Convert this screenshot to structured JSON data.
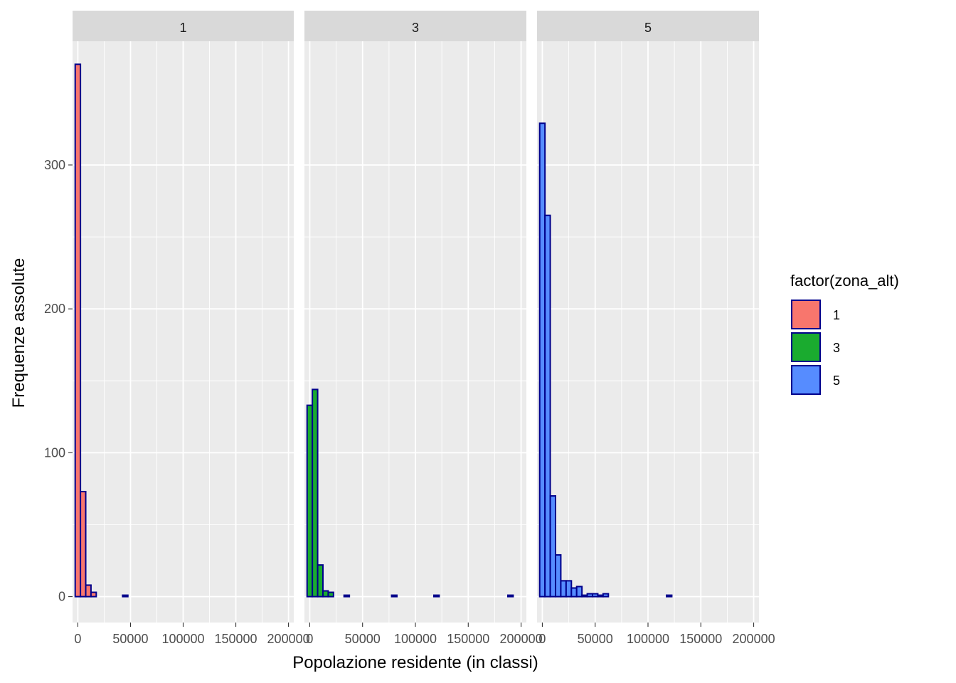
{
  "chart_data": {
    "type": "bar",
    "subtype": "faceted-histogram",
    "xlabel": "Popolazione residente (in classi)",
    "ylabel": "Frequenze assolute",
    "xlim": [
      -5000,
      205000
    ],
    "ylim": [
      -18,
      386
    ],
    "x_ticks": [
      0,
      50000,
      100000,
      150000,
      200000
    ],
    "x_tick_labels": [
      "0",
      "50000",
      "100000",
      "150000",
      "200000"
    ],
    "y_ticks": [
      0,
      100,
      200,
      300
    ],
    "y_tick_labels": [
      "0",
      "100",
      "200",
      "300"
    ],
    "grid": true,
    "bin_width": 5000,
    "bin_centers": [
      0,
      5000,
      10000,
      15000,
      20000,
      25000,
      30000,
      35000,
      40000,
      45000,
      50000,
      55000,
      60000,
      65000,
      70000,
      75000,
      80000,
      85000,
      90000,
      95000,
      100000,
      105000,
      110000,
      115000,
      120000,
      125000,
      130000,
      135000,
      140000,
      145000,
      150000,
      155000,
      160000,
      165000,
      170000,
      175000,
      180000,
      185000,
      190000,
      195000,
      200000
    ],
    "bar_outline_color": "#00008b",
    "legend": {
      "title": "factor(zona_alt)",
      "placement": "right",
      "entries": [
        "1",
        "3",
        "5"
      ]
    },
    "facets": [
      {
        "label": "1",
        "color": "#f8766d",
        "bin_start": 0,
        "counts": [
          370,
          73,
          8,
          3,
          0,
          0,
          0,
          0,
          0,
          1,
          0,
          0,
          0,
          0,
          0,
          0,
          0,
          0,
          0,
          0,
          0,
          0,
          0,
          0,
          0,
          0,
          0,
          0,
          0,
          0,
          0,
          0,
          0,
          0,
          0,
          0,
          0,
          0,
          0,
          0
        ]
      },
      {
        "label": "3",
        "color": "#1aab2f",
        "bin_start": 0,
        "counts": [
          133,
          144,
          22,
          4,
          3,
          0,
          0,
          1,
          0,
          0,
          0,
          0,
          0,
          0,
          0,
          0,
          1,
          0,
          0,
          0,
          0,
          0,
          0,
          0,
          1,
          0,
          0,
          0,
          0,
          0,
          0,
          0,
          0,
          0,
          0,
          0,
          0,
          0,
          1
        ]
      },
      {
        "label": "5",
        "color": "#568cff",
        "bin_start": 0,
        "counts": [
          329,
          265,
          70,
          29,
          11,
          11,
          6,
          7,
          1,
          2,
          2,
          1,
          2,
          0,
          0,
          0,
          0,
          0,
          0,
          0,
          0,
          0,
          0,
          0,
          1,
          0,
          0,
          0,
          0,
          0,
          0,
          0,
          0,
          0,
          0,
          0,
          0,
          0,
          0,
          0
        ]
      }
    ]
  }
}
